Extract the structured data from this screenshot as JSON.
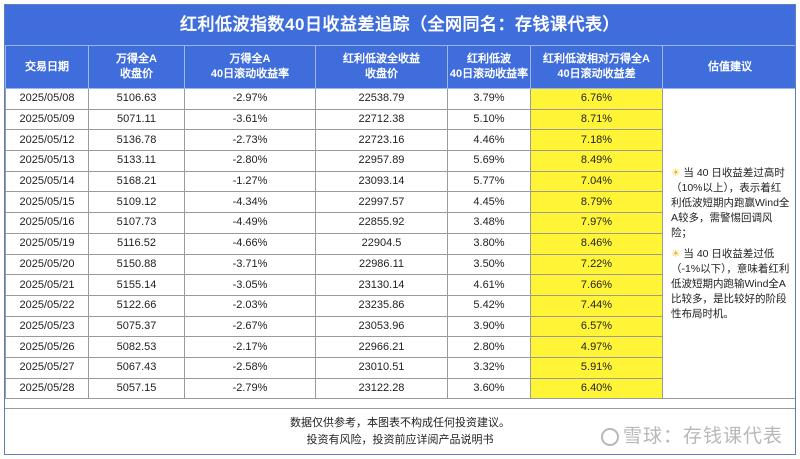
{
  "title": "红利低波指数40日收益差追踪（全网同名：存钱课代表）",
  "headers": {
    "date": "交易日期",
    "wind_close_1": "万得全A",
    "wind_close_2": "收盘价",
    "wind_ret_1": "万得全A",
    "wind_ret_2": "40日滚动收益率",
    "div_close_1": "红利低波全收益",
    "div_close_2": "收盘价",
    "div_ret_1": "红利低波",
    "div_ret_2": "40日滚动收益率",
    "diff_1": "红利低波相对万得全A",
    "diff_2": "40日滚动收益差",
    "advice": "估值建议"
  },
  "rows": [
    {
      "date": "2025/05/08",
      "wind_close": "5106.63",
      "wind_ret": "-2.97%",
      "div_close": "22538.79",
      "div_ret": "3.79%",
      "diff": "6.76%"
    },
    {
      "date": "2025/05/09",
      "wind_close": "5071.11",
      "wind_ret": "-3.61%",
      "div_close": "22712.38",
      "div_ret": "5.10%",
      "diff": "8.71%"
    },
    {
      "date": "2025/05/12",
      "wind_close": "5136.78",
      "wind_ret": "-2.73%",
      "div_close": "22723.16",
      "div_ret": "4.46%",
      "diff": "7.18%"
    },
    {
      "date": "2025/05/13",
      "wind_close": "5133.11",
      "wind_ret": "-2.80%",
      "div_close": "22957.89",
      "div_ret": "5.69%",
      "diff": "8.49%"
    },
    {
      "date": "2025/05/14",
      "wind_close": "5168.21",
      "wind_ret": "-1.27%",
      "div_close": "23093.14",
      "div_ret": "5.77%",
      "diff": "7.04%"
    },
    {
      "date": "2025/05/15",
      "wind_close": "5109.12",
      "wind_ret": "-4.34%",
      "div_close": "22997.57",
      "div_ret": "4.45%",
      "diff": "8.79%"
    },
    {
      "date": "2025/05/16",
      "wind_close": "5107.73",
      "wind_ret": "-4.49%",
      "div_close": "22855.92",
      "div_ret": "3.48%",
      "diff": "7.97%"
    },
    {
      "date": "2025/05/19",
      "wind_close": "5116.52",
      "wind_ret": "-4.66%",
      "div_close": "22904.5",
      "div_ret": "3.80%",
      "diff": "8.46%"
    },
    {
      "date": "2025/05/20",
      "wind_close": "5150.88",
      "wind_ret": "-3.71%",
      "div_close": "22986.11",
      "div_ret": "3.50%",
      "diff": "7.22%"
    },
    {
      "date": "2025/05/21",
      "wind_close": "5155.14",
      "wind_ret": "-3.05%",
      "div_close": "23130.14",
      "div_ret": "4.61%",
      "diff": "7.66%"
    },
    {
      "date": "2025/05/22",
      "wind_close": "5122.66",
      "wind_ret": "-2.03%",
      "div_close": "23235.86",
      "div_ret": "5.42%",
      "diff": "7.44%"
    },
    {
      "date": "2025/05/23",
      "wind_close": "5075.37",
      "wind_ret": "-2.67%",
      "div_close": "23053.96",
      "div_ret": "3.90%",
      "diff": "6.57%"
    },
    {
      "date": "2025/05/26",
      "wind_close": "5082.53",
      "wind_ret": "-2.17%",
      "div_close": "22966.21",
      "div_ret": "2.80%",
      "diff": "4.97%"
    },
    {
      "date": "2025/05/27",
      "wind_close": "5067.43",
      "wind_ret": "-2.58%",
      "div_close": "23010.51",
      "div_ret": "3.32%",
      "diff": "5.91%"
    },
    {
      "date": "2025/05/28",
      "wind_close": "5057.15",
      "wind_ret": "-2.79%",
      "div_close": "23122.28",
      "div_ret": "3.60%",
      "diff": "6.40%"
    }
  ],
  "advice": {
    "item1": "当 40 日收益差过高时（10%以上），表示着红利低波短期内跑赢Wind全A较多，需警惕回调风险；",
    "item2": "当 40 日收益差过低（-1%以下），意味着红利低波短期内跑输Wind全A比较多，是比较好的阶段性布局时机。",
    "icon": "lightbulb-icon"
  },
  "footer": {
    "line1": "数据仅供参考，本图表不构成任何投资建议。",
    "line2": "投资有风险，投资前应详阅产品说明书"
  },
  "watermark": "雪球：存钱课代表",
  "colors": {
    "header": "#3f6ddb",
    "highlight": "#fff536"
  }
}
